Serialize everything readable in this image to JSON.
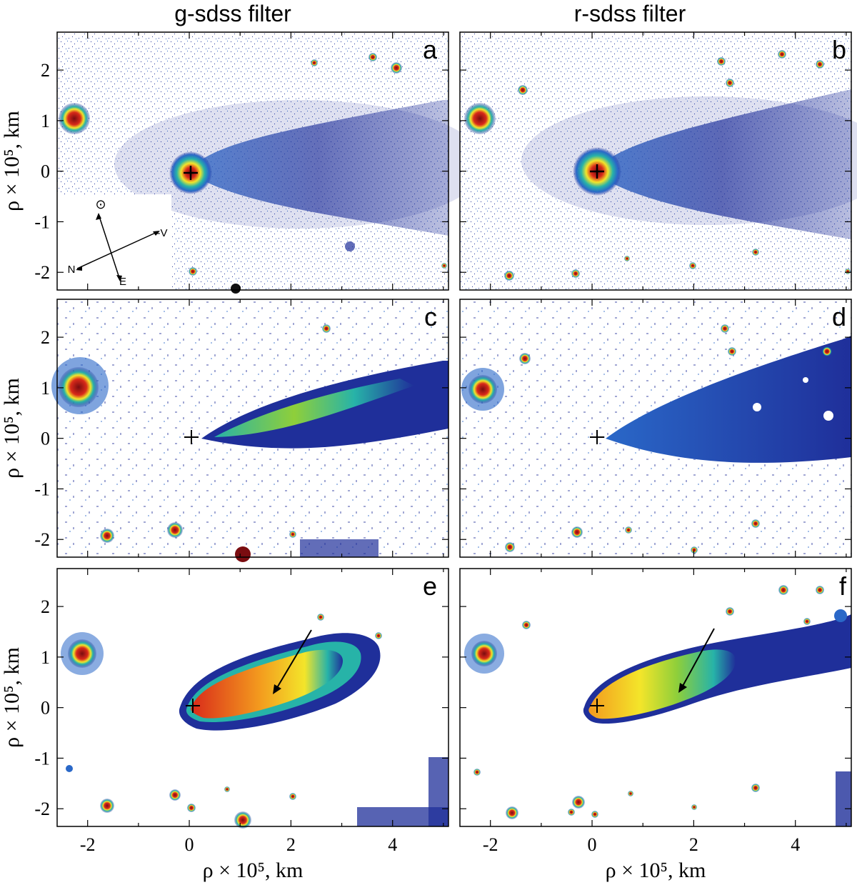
{
  "figure": {
    "columns": [
      {
        "title": "g-sdss filter"
      },
      {
        "title": "r-sdss filter"
      }
    ],
    "panels": [
      {
        "letter": "a",
        "filter": "g-sdss"
      },
      {
        "letter": "b",
        "filter": "r-sdss"
      },
      {
        "letter": "c",
        "filter": "g-sdss"
      },
      {
        "letter": "d",
        "filter": "r-sdss"
      },
      {
        "letter": "e",
        "filter": "g-sdss"
      },
      {
        "letter": "f",
        "filter": "r-sdss"
      }
    ],
    "y_axis_label": "ρ × 10⁵, km",
    "x_axis_label": "ρ × 10⁵, km",
    "x_ticks": [
      "-2",
      "0",
      "2",
      "4"
    ],
    "y_ticks": [
      "2",
      "1",
      "0",
      "-1",
      "-2"
    ],
    "compass": {
      "sun": "⊙",
      "north": "N",
      "east": "E",
      "velocity": "-V"
    },
    "colormap": [
      "#1f2f9a",
      "#2a68c8",
      "#27b3a8",
      "#8fcf3a",
      "#f3e52a",
      "#f39a1e",
      "#d92a1a",
      "#7a0c10"
    ]
  }
}
